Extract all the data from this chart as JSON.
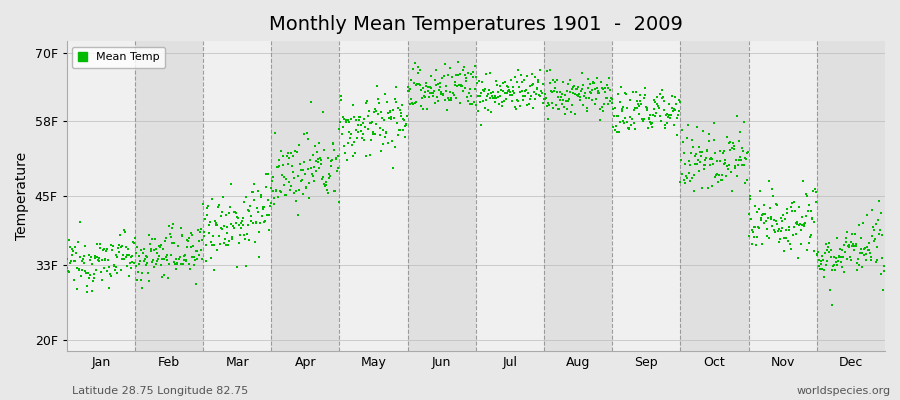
{
  "title": "Monthly Mean Temperatures 1901  -  2009",
  "ylabel": "Temperature",
  "yticks": [
    20,
    33,
    45,
    58,
    70
  ],
  "ytick_labels": [
    "20F",
    "33F",
    "45F",
    "58F",
    "70F"
  ],
  "ylim": [
    18,
    72
  ],
  "months": [
    "Jan",
    "Feb",
    "Mar",
    "Apr",
    "May",
    "Jun",
    "Jul",
    "Aug",
    "Sep",
    "Oct",
    "Nov",
    "Dec"
  ],
  "month_means": [
    33.0,
    34.0,
    39.5,
    48.0,
    56.5,
    63.0,
    62.5,
    62.0,
    59.0,
    50.5,
    39.5,
    34.0
  ],
  "month_stds": [
    2.2,
    2.3,
    3.2,
    3.0,
    2.8,
    2.2,
    1.8,
    1.8,
    2.2,
    2.8,
    3.0,
    2.5
  ],
  "month_trends": [
    0.015,
    0.018,
    0.025,
    0.025,
    0.02,
    0.015,
    0.01,
    0.01,
    0.015,
    0.02,
    0.025,
    0.02
  ],
  "n_years": 109,
  "start_year": 1901,
  "dot_color": "#00bb00",
  "dot_size": 3,
  "bg_color_light": "#f0f0f0",
  "bg_color_dark": "#e0e0e0",
  "bg_outer": "#e8e8e8",
  "legend_label": "Mean Temp",
  "footer_left": "Latitude 28.75 Longitude 82.75",
  "footer_right": "worldspecies.org",
  "footer_fontsize": 8,
  "title_fontsize": 14,
  "axis_label_fontsize": 10,
  "tick_fontsize": 9
}
